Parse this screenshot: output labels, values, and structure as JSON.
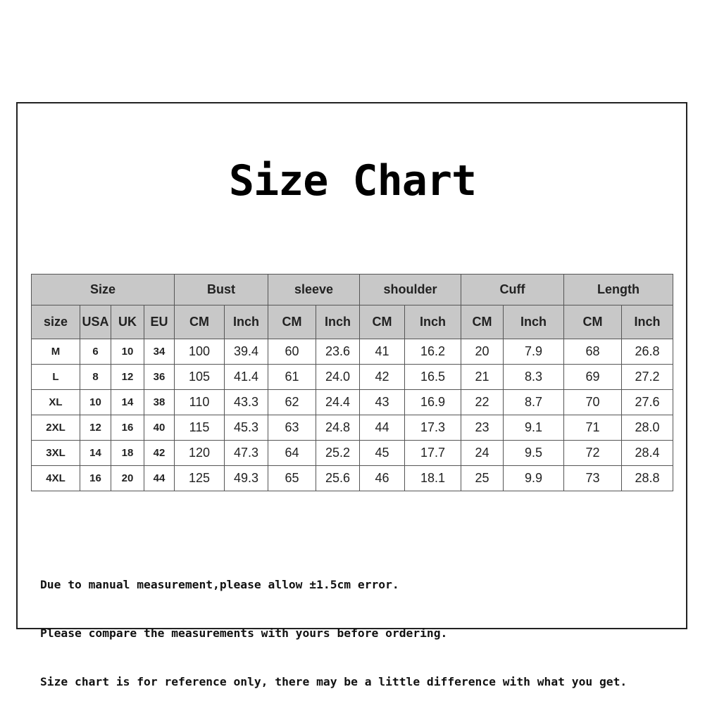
{
  "title": "Size Chart",
  "table": {
    "groups": [
      "Size",
      "Bust",
      "sleeve",
      "shoulder",
      "Cuff",
      "Length"
    ],
    "subheaders": [
      "size",
      "USA",
      "UK",
      "EU",
      "CM",
      "Inch",
      "CM",
      "Inch",
      "CM",
      "Inch",
      "CM",
      "Inch",
      "CM",
      "Inch"
    ],
    "rows": [
      [
        "M",
        "6",
        "10",
        "34",
        "100",
        "39.4",
        "60",
        "23.6",
        "41",
        "16.2",
        "20",
        "7.9",
        "68",
        "26.8"
      ],
      [
        "L",
        "8",
        "12",
        "36",
        "105",
        "41.4",
        "61",
        "24.0",
        "42",
        "16.5",
        "21",
        "8.3",
        "69",
        "27.2"
      ],
      [
        "XL",
        "10",
        "14",
        "38",
        "110",
        "43.3",
        "62",
        "24.4",
        "43",
        "16.9",
        "22",
        "8.7",
        "70",
        "27.6"
      ],
      [
        "2XL",
        "12",
        "16",
        "40",
        "115",
        "45.3",
        "63",
        "24.8",
        "44",
        "17.3",
        "23",
        "9.1",
        "71",
        "28.0"
      ],
      [
        "3XL",
        "14",
        "18",
        "42",
        "120",
        "47.3",
        "64",
        "25.2",
        "45",
        "17.7",
        "24",
        "9.5",
        "72",
        "28.4"
      ],
      [
        "4XL",
        "16",
        "20",
        "44",
        "125",
        "49.3",
        "65",
        "25.6",
        "46",
        "18.1",
        "25",
        "9.9",
        "73",
        "28.8"
      ]
    ]
  },
  "notes": [
    "Due to manual measurement,please allow ±1.5cm error.",
    "Please compare the measurements with yours before ordering.",
    "Size chart is for reference only, there may be a little difference with what you get."
  ],
  "colors": {
    "header_bg": "#c8c8c8",
    "border": "#555555"
  }
}
